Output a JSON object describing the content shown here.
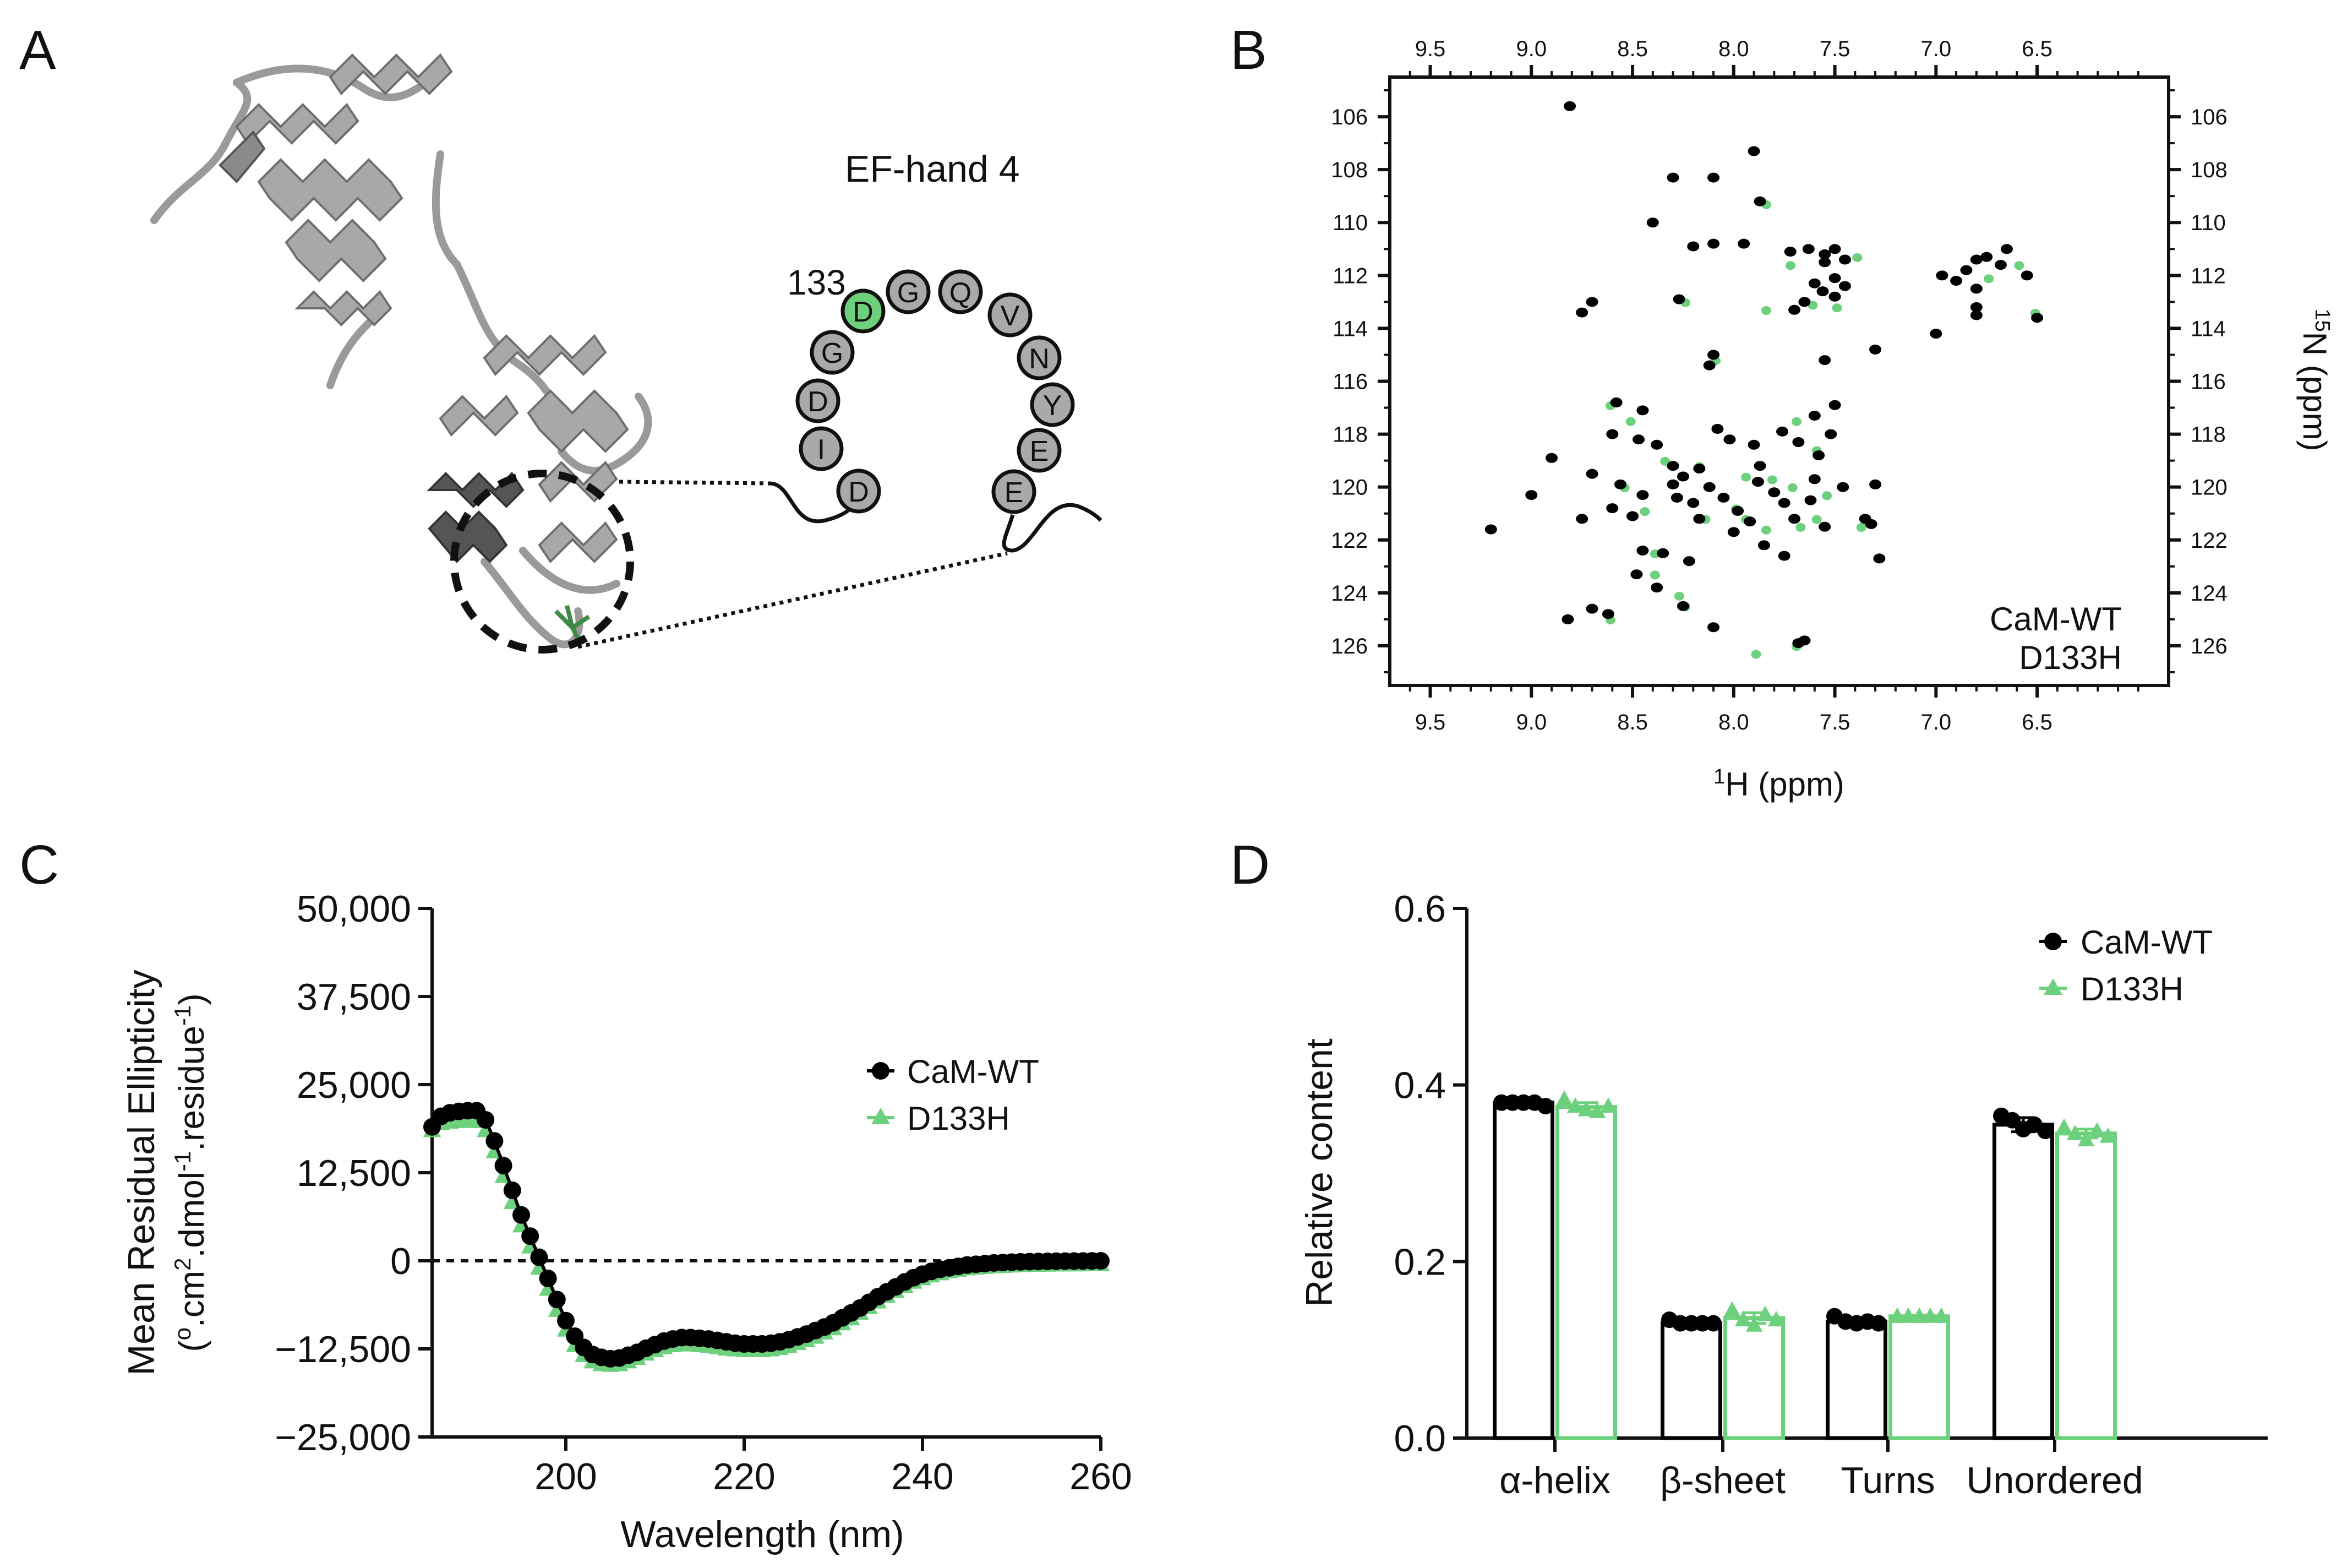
{
  "panels": {
    "A": {
      "letter": "A",
      "title": "EF-hand 4",
      "start_residue": "133",
      "loop_residues": [
        {
          "aa": "D",
          "mutated": false
        },
        {
          "aa": "I",
          "mutated": false
        },
        {
          "aa": "D",
          "mutated": false
        },
        {
          "aa": "G",
          "mutated": false
        },
        {
          "aa": "D",
          "mutated": true
        },
        {
          "aa": "G",
          "mutated": false
        },
        {
          "aa": "Q",
          "mutated": false
        },
        {
          "aa": "V",
          "mutated": false
        },
        {
          "aa": "N",
          "mutated": false
        },
        {
          "aa": "Y",
          "mutated": false
        },
        {
          "aa": "E",
          "mutated": false
        },
        {
          "aa": "E",
          "mutated": false
        }
      ]
    },
    "B": {
      "letter": "B"
    },
    "C": {
      "letter": "C"
    },
    "D": {
      "letter": "D"
    }
  },
  "colors": {
    "wt": "#000000",
    "mutant": "#6cd07c",
    "protein": "#9a9a9a",
    "protein_dark": "#555555"
  },
  "chart_data": [
    {
      "panel": "B",
      "type": "scatter",
      "title": "",
      "xlabel_sup": "1",
      "xlabel": "H (ppm)",
      "ylabel_sup": "15",
      "ylabel": "N (ppm)",
      "x_reversed": true,
      "xlim": [
        9.7,
        5.85
      ],
      "ylim": [
        104.5,
        127.5
      ],
      "x_ticks": [
        "9.5",
        "9.0",
        "8.5",
        "8.0",
        "7.5",
        "7.0",
        "6.5"
      ],
      "y_ticks": [
        "106",
        "108",
        "110",
        "112",
        "114",
        "116",
        "118",
        "120",
        "122",
        "124",
        "126"
      ],
      "legend": "bottom-right",
      "series": [
        {
          "name": "CaM-WT",
          "color": "#000000",
          "points": [
            [
              8.81,
              105.6
            ],
            [
              7.9,
              107.3
            ],
            [
              8.3,
              108.3
            ],
            [
              8.1,
              108.3
            ],
            [
              7.87,
              109.2
            ],
            [
              8.4,
              110
            ],
            [
              8.1,
              110.8
            ],
            [
              8.2,
              110.9
            ],
            [
              7.95,
              110.8
            ],
            [
              7.72,
              111.1
            ],
            [
              7.63,
              111
            ],
            [
              7.55,
              111.2
            ],
            [
              7.5,
              111
            ],
            [
              7.45,
              111.4
            ],
            [
              7.55,
              111.5
            ],
            [
              7.5,
              112.1
            ],
            [
              7.6,
              112.3
            ],
            [
              7.56,
              112.6
            ],
            [
              7.65,
              113
            ],
            [
              7.45,
              112.4
            ],
            [
              7.5,
              112.8
            ],
            [
              7.7,
              113.3
            ],
            [
              6.65,
              111
            ],
            [
              6.68,
              111.6
            ],
            [
              6.8,
              111.4
            ],
            [
              6.75,
              111.3
            ],
            [
              6.85,
              111.8
            ],
            [
              6.9,
              112.2
            ],
            [
              6.8,
              112.5
            ],
            [
              6.8,
              113.2
            ],
            [
              6.8,
              113.5
            ],
            [
              6.97,
              112
            ],
            [
              6.55,
              112
            ],
            [
              6.5,
              113.6
            ],
            [
              8.1,
              115
            ],
            [
              8.27,
              112.9
            ],
            [
              8.7,
              113
            ],
            [
              8.75,
              113.4
            ],
            [
              7.3,
              114.8
            ],
            [
              7.55,
              115.2
            ],
            [
              7.0,
              114.2
            ],
            [
              8.12,
              115.4
            ],
            [
              8.58,
              116.8
            ],
            [
              8.45,
              117.1
            ],
            [
              7.6,
              117.3
            ],
            [
              7.5,
              116.9
            ],
            [
              8.6,
              118
            ],
            [
              8.47,
              118.2
            ],
            [
              8.38,
              118.4
            ],
            [
              8.08,
              117.8
            ],
            [
              8.02,
              118.2
            ],
            [
              7.9,
              118.4
            ],
            [
              7.76,
              117.9
            ],
            [
              7.68,
              118.3
            ],
            [
              7.58,
              118.8
            ],
            [
              7.52,
              118
            ],
            [
              7.87,
              119.2
            ],
            [
              8.9,
              118.9
            ],
            [
              8.7,
              119.5
            ],
            [
              8.3,
              119.2
            ],
            [
              8.3,
              119.9
            ],
            [
              8.25,
              119.6
            ],
            [
              8.28,
              120.4
            ],
            [
              8.2,
              120.6
            ],
            [
              8.12,
              120
            ],
            [
              8.05,
              120.4
            ],
            [
              7.98,
              120.9
            ],
            [
              7.92,
              121.3
            ],
            [
              7.88,
              119.8
            ],
            [
              7.8,
              120.2
            ],
            [
              7.75,
              120.6
            ],
            [
              7.7,
              121.2
            ],
            [
              7.62,
              120.5
            ],
            [
              7.55,
              121.5
            ],
            [
              7.46,
              120
            ],
            [
              8.45,
              120.3
            ],
            [
              8.5,
              121.1
            ],
            [
              8.6,
              120.8
            ],
            [
              8.0,
              121.7
            ],
            [
              7.35,
              121.2
            ],
            [
              7.32,
              121.4
            ],
            [
              9.2,
              121.6
            ],
            [
              9.0,
              120.3
            ],
            [
              8.75,
              121.2
            ],
            [
              8.45,
              122.4
            ],
            [
              8.35,
              122.5
            ],
            [
              8.22,
              122.8
            ],
            [
              7.85,
              122.2
            ],
            [
              7.75,
              122.6
            ],
            [
              7.28,
              122.7
            ],
            [
              8.48,
              123.3
            ],
            [
              8.38,
              123.8
            ],
            [
              8.25,
              124.5
            ],
            [
              8.62,
              124.8
            ],
            [
              8.7,
              124.6
            ],
            [
              8.82,
              125
            ],
            [
              8.1,
              125.3
            ],
            [
              7.65,
              125.8
            ],
            [
              7.68,
              125.9
            ],
            [
              8.17,
              121.2
            ],
            [
              8.17,
              119.3
            ],
            [
              7.6,
              119.7
            ],
            [
              7.3,
              119.9
            ],
            [
              8.56,
              119.9
            ]
          ]
        },
        {
          "name": "D133H",
          "color": "#6cd07c",
          "points": [
            [
              7.85,
              109.2
            ],
            [
              7.73,
              111.5
            ],
            [
              7.62,
              113
            ],
            [
              7.5,
              113.1
            ],
            [
              7.4,
              111.2
            ],
            [
              6.75,
              112
            ],
            [
              6.6,
              111.5
            ],
            [
              6.52,
              113.3
            ],
            [
              8.25,
              112.9
            ],
            [
              7.85,
              113.2
            ],
            [
              8.1,
              115.1
            ],
            [
              8.62,
              116.8
            ],
            [
              8.52,
              117.4
            ],
            [
              7.7,
              117.4
            ],
            [
              7.6,
              118.5
            ],
            [
              8.35,
              118.9
            ],
            [
              8.18,
              119.1
            ],
            [
              7.95,
              119.5
            ],
            [
              7.82,
              119.6
            ],
            [
              7.72,
              119.9
            ],
            [
              8.55,
              119.9
            ],
            [
              8.45,
              120.8
            ],
            [
              8.15,
              121.1
            ],
            [
              7.95,
              121.1
            ],
            [
              7.85,
              121.5
            ],
            [
              7.68,
              121.4
            ],
            [
              7.6,
              121.1
            ],
            [
              7.38,
              121.4
            ],
            [
              8.4,
              123.2
            ],
            [
              8.4,
              122.4
            ],
            [
              8.28,
              124
            ],
            [
              8.25,
              124.4
            ],
            [
              8.62,
              124.9
            ],
            [
              7.7,
              125.9
            ],
            [
              7.9,
              126.2
            ],
            [
              8.0,
              120.7
            ],
            [
              7.55,
              120.2
            ]
          ]
        }
      ]
    },
    {
      "panel": "C",
      "type": "line",
      "title": "",
      "xlabel": "Wavelength (nm)",
      "ylabel_line1": "Mean Residual Ellipticity",
      "ylabel_line2_parts": [
        "(",
        "o",
        ".cm",
        "2",
        ".dmol",
        "-1",
        ".residue",
        "-1",
        ")"
      ],
      "xlim": [
        185,
        260
      ],
      "ylim": [
        -25000,
        50000
      ],
      "x_ticks": [
        "200",
        "220",
        "240",
        "260"
      ],
      "x_tick_values": [
        200,
        220,
        240,
        260
      ],
      "y_ticks": [
        "50,000",
        "37,500",
        "25,000",
        "12,500",
        "0",
        "−12,500",
        "−25,000"
      ],
      "y_tick_values": [
        50000,
        37500,
        25000,
        12500,
        0,
        -12500,
        -25000
      ],
      "reference_line": 0,
      "legend": "top-right",
      "x": [
        185,
        186,
        187,
        188,
        189,
        190,
        191,
        192,
        193,
        194,
        195,
        196,
        197,
        198,
        199,
        200,
        201,
        202,
        203,
        204,
        205,
        206,
        207,
        208,
        209,
        210,
        211,
        212,
        213,
        214,
        215,
        216,
        217,
        218,
        219,
        220,
        221,
        222,
        223,
        224,
        225,
        226,
        227,
        228,
        229,
        230,
        231,
        232,
        233,
        234,
        235,
        236,
        237,
        238,
        239,
        240,
        241,
        242,
        243,
        244,
        245,
        246,
        247,
        248,
        249,
        250,
        251,
        252,
        253,
        254,
        255,
        256,
        257,
        258,
        259,
        260
      ],
      "series": [
        {
          "name": "CaM-WT",
          "marker": "circle",
          "color": "#000000",
          "values": [
            19000,
            20500,
            21000,
            21200,
            21300,
            21300,
            20000,
            17000,
            13500,
            10000,
            6500,
            3500,
            500,
            -2500,
            -5500,
            -8500,
            -10700,
            -12300,
            -13300,
            -13700,
            -13900,
            -13800,
            -13400,
            -13000,
            -12400,
            -11900,
            -11400,
            -11100,
            -10900,
            -10900,
            -11000,
            -11100,
            -11300,
            -11500,
            -11700,
            -11800,
            -11800,
            -11800,
            -11700,
            -11500,
            -11200,
            -10800,
            -10400,
            -9900,
            -9400,
            -8800,
            -8100,
            -7400,
            -6700,
            -5900,
            -5100,
            -4400,
            -3700,
            -3000,
            -2400,
            -1900,
            -1500,
            -1200,
            -1000,
            -800,
            -600,
            -500,
            -400,
            -300,
            -250,
            -200,
            -150,
            -120,
            -100,
            -80,
            -60,
            -50,
            -40,
            -30,
            -20,
            -10
          ]
        },
        {
          "name": "D133H",
          "marker": "triangle",
          "color": "#6cd07c",
          "values": [
            19000,
            20000,
            20200,
            20300,
            20400,
            20300,
            19000,
            16000,
            12500,
            8800,
            5500,
            2500,
            -500,
            -3500,
            -6500,
            -9300,
            -11500,
            -12900,
            -13800,
            -14200,
            -14300,
            -14200,
            -13800,
            -13300,
            -12700,
            -12200,
            -11800,
            -11500,
            -11400,
            -11400,
            -11500,
            -11600,
            -11800,
            -12000,
            -12100,
            -12200,
            -12200,
            -12200,
            -12100,
            -11900,
            -11600,
            -11200,
            -10800,
            -10300,
            -9700,
            -9100,
            -8400,
            -7700,
            -6900,
            -6100,
            -5300,
            -4500,
            -3800,
            -3100,
            -2500,
            -2000,
            -1600,
            -1300,
            -1000,
            -800,
            -600,
            -500,
            -400,
            -300,
            -250,
            -200,
            -150,
            -120,
            -100,
            -80,
            -60,
            -50,
            -40,
            -30,
            -20,
            -10
          ]
        }
      ]
    },
    {
      "panel": "D",
      "type": "bar",
      "title": "",
      "xlabel": "",
      "ylabel": "Relative content",
      "ylim": [
        0,
        0.6
      ],
      "y_ticks": [
        "0.0",
        "0.2",
        "0.4",
        "0.6"
      ],
      "y_tick_values": [
        0,
        0.2,
        0.4,
        0.6
      ],
      "categories": [
        "α-helix",
        "β-sheet",
        "Turns",
        "Unordered"
      ],
      "legend": "top-right",
      "series": [
        {
          "name": "CaM-WT",
          "marker": "circle",
          "color": "#000000",
          "values": [
            0.38,
            0.13,
            0.132,
            0.355
          ],
          "sd": [
            0.002,
            0.001,
            0.004,
            0.008
          ],
          "replicates": [
            [
              0.38,
              0.38,
              0.38,
              0.38,
              0.376
            ],
            [
              0.134,
              0.13,
              0.13,
              0.13,
              0.13
            ],
            [
              0.138,
              0.132,
              0.13,
              0.132,
              0.13
            ],
            [
              0.365,
              0.36,
              0.35,
              0.355,
              0.348
            ]
          ]
        },
        {
          "name": "D133H",
          "marker": "triangle",
          "color": "#6cd07c",
          "values": [
            0.375,
            0.136,
            0.138,
            0.345
          ],
          "sd": [
            0.005,
            0.006,
            0.001,
            0.005
          ],
          "replicates": [
            [
              0.384,
              0.376,
              0.372,
              0.37,
              0.376
            ],
            [
              0.145,
              0.134,
              0.128,
              0.14,
              0.134
            ],
            [
              0.138,
              0.138,
              0.138,
              0.138,
              0.138
            ],
            [
              0.352,
              0.345,
              0.338,
              0.348,
              0.342
            ]
          ]
        }
      ]
    }
  ]
}
